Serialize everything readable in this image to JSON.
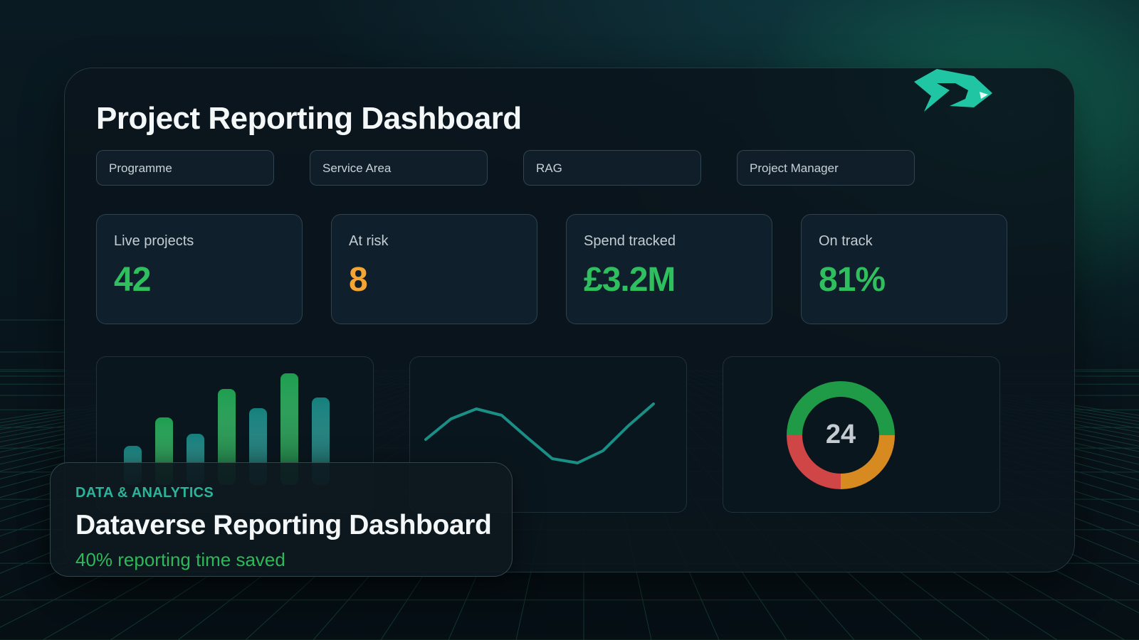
{
  "dashboard": {
    "title": "Project Reporting Dashboard",
    "filters": [
      {
        "label": "Programme"
      },
      {
        "label": "Service Area"
      },
      {
        "label": "RAG"
      },
      {
        "label": "Project Manager"
      }
    ],
    "kpis": [
      {
        "label": "Live projects",
        "value": "42",
        "color": "#2fbf5e"
      },
      {
        "label": "At risk",
        "value": "8",
        "color": "#f4a533"
      },
      {
        "label": "Spend tracked",
        "value": "£3.2M",
        "color": "#2fbf5e"
      },
      {
        "label": "On track",
        "value": "81%",
        "color": "#2fbf5e"
      }
    ]
  },
  "chart_data": [
    {
      "type": "bar",
      "values": [
        55,
        95,
        72,
        135,
        108,
        157,
        123
      ],
      "ylim": [
        0,
        160
      ],
      "colors": [
        "#147f7c",
        "#1d9d4f",
        "#147f7c",
        "#1d9d4f",
        "#147f7c",
        "#1d9d4f",
        "#147f7c"
      ],
      "grid": false
    },
    {
      "type": "line",
      "x": [
        0,
        1,
        2,
        3,
        4,
        5,
        6,
        7,
        8,
        9
      ],
      "values": [
        54,
        83,
        97,
        88,
        57,
        27,
        21,
        38,
        73,
        104
      ],
      "ylim": [
        0,
        130
      ],
      "color": "#1a8f85",
      "grid": false
    },
    {
      "type": "pie",
      "center_label": "24",
      "values": [
        50,
        25,
        25
      ],
      "colors": [
        "#1f9a46",
        "#d68a20",
        "#d04545"
      ]
    }
  ],
  "overlay": {
    "category": "DATA & ANALYTICS",
    "title": "Dataverse Reporting Dashboard",
    "stat": "40% reporting time saved"
  },
  "brand": {
    "accent": "#20c5a3",
    "logo": "arrow-logo-icon"
  }
}
